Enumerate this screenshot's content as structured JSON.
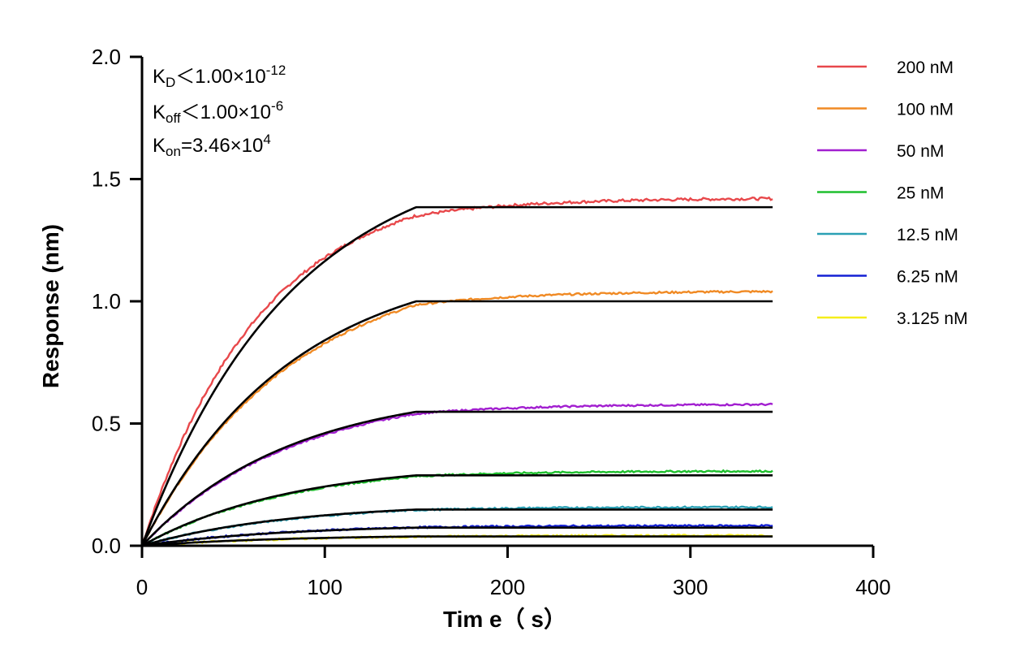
{
  "chart_data": {
    "type": "line",
    "title": "",
    "xlabel": "Tim e（ s）",
    "ylabel": "Response (nm)",
    "xlim": [
      0,
      400
    ],
    "ylim": [
      0,
      2.0
    ],
    "x_ticks": [
      "0",
      "100",
      "200",
      "300",
      "400"
    ],
    "y_ticks": [
      "0.0",
      "0.5",
      "1.0",
      "1.5",
      "2.0"
    ],
    "grid": false,
    "legend_position": "top-right",
    "association_end_s": 150,
    "dissociation_end_s": 345,
    "annotations": {
      "kd": {
        "base": "K",
        "sub": "D",
        "rel": "＜1.00×10",
        "sup": "-12"
      },
      "koff": {
        "base": "K",
        "sub": "off",
        "rel": "＜1.00×10",
        "sup": "-6"
      },
      "kon": {
        "base": "K",
        "sub": "on",
        "rel": "=3.46×10",
        "sup": "4"
      }
    },
    "series": [
      {
        "name": "200 nM",
        "color": "#e8484b",
        "plateau": 1.385,
        "measured_150": 1.35,
        "measured_end": 1.42
      },
      {
        "name": "100 nM",
        "color": "#f08a24",
        "plateau": 1.0,
        "measured_150": 0.985,
        "measured_end": 1.04
      },
      {
        "name": "50 nM",
        "color": "#a21fd0",
        "plateau": 0.548,
        "measured_150": 0.54,
        "measured_end": 0.578
      },
      {
        "name": "25 nM",
        "color": "#1fbf2e",
        "plateau": 0.288,
        "measured_150": 0.284,
        "measured_end": 0.305
      },
      {
        "name": "12.5 nM",
        "color": "#2aa0b4",
        "plateau": 0.148,
        "measured_150": 0.146,
        "measured_end": 0.158
      },
      {
        "name": "6.25 nM",
        "color": "#1420d4",
        "plateau": 0.074,
        "measured_150": 0.075,
        "measured_end": 0.082
      },
      {
        "name": "3.125 nM",
        "color": "#f5ee1a",
        "plateau": 0.038,
        "measured_150": 0.037,
        "measured_end": 0.042
      }
    ],
    "fit_color": "#000000"
  }
}
